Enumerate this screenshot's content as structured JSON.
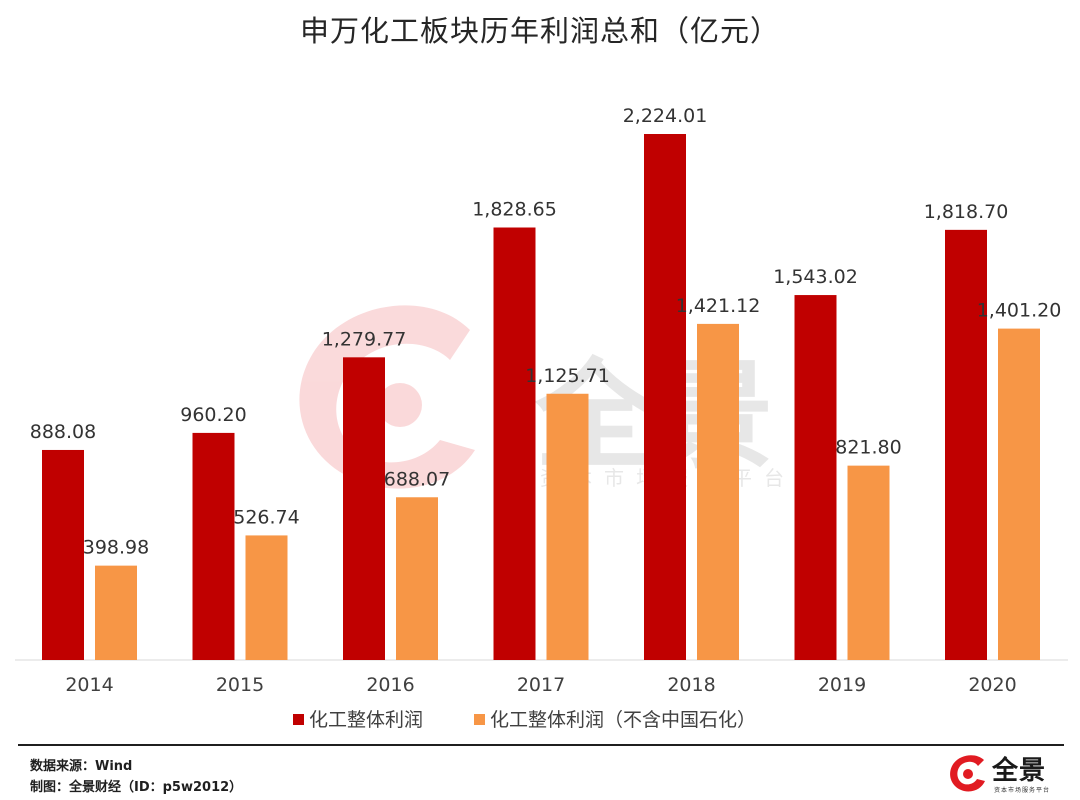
{
  "title": "申万化工板块历年利润总和（亿元）",
  "chart_data": {
    "type": "bar",
    "categories": [
      "2014",
      "2015",
      "2016",
      "2017",
      "2018",
      "2019",
      "2020"
    ],
    "series": [
      {
        "name": "化工整体利润",
        "color": "#c00000",
        "values": [
          888.08,
          960.2,
          1279.77,
          1828.65,
          2224.01,
          1543.02,
          1818.7
        ],
        "labels": [
          "888.08",
          "960.20",
          "1,279.77",
          "1,828.65",
          "2,224.01",
          "1,543.02",
          "1,818.70"
        ]
      },
      {
        "name": "化工整体利润（不含中国石化）",
        "color": "#f79646",
        "values": [
          398.98,
          526.74,
          688.07,
          1125.71,
          1421.12,
          821.8,
          1401.2
        ],
        "labels": [
          "398.98",
          "526.74",
          "688.07",
          "1,125.71",
          "1,421.12",
          "821.80",
          "1,401.20"
        ]
      }
    ],
    "ylim": [
      0,
      2224.01
    ],
    "grid": false,
    "legend_position": "bottom"
  },
  "watermark": {
    "brand": "全景",
    "tagline": "资本市场服务平台"
  },
  "footer": {
    "source": "数据来源：Wind",
    "credit": "制图：全景财经（ID：p5w2012）",
    "logo_text": "全景",
    "logo_subtext": "资本市场服务平台"
  }
}
